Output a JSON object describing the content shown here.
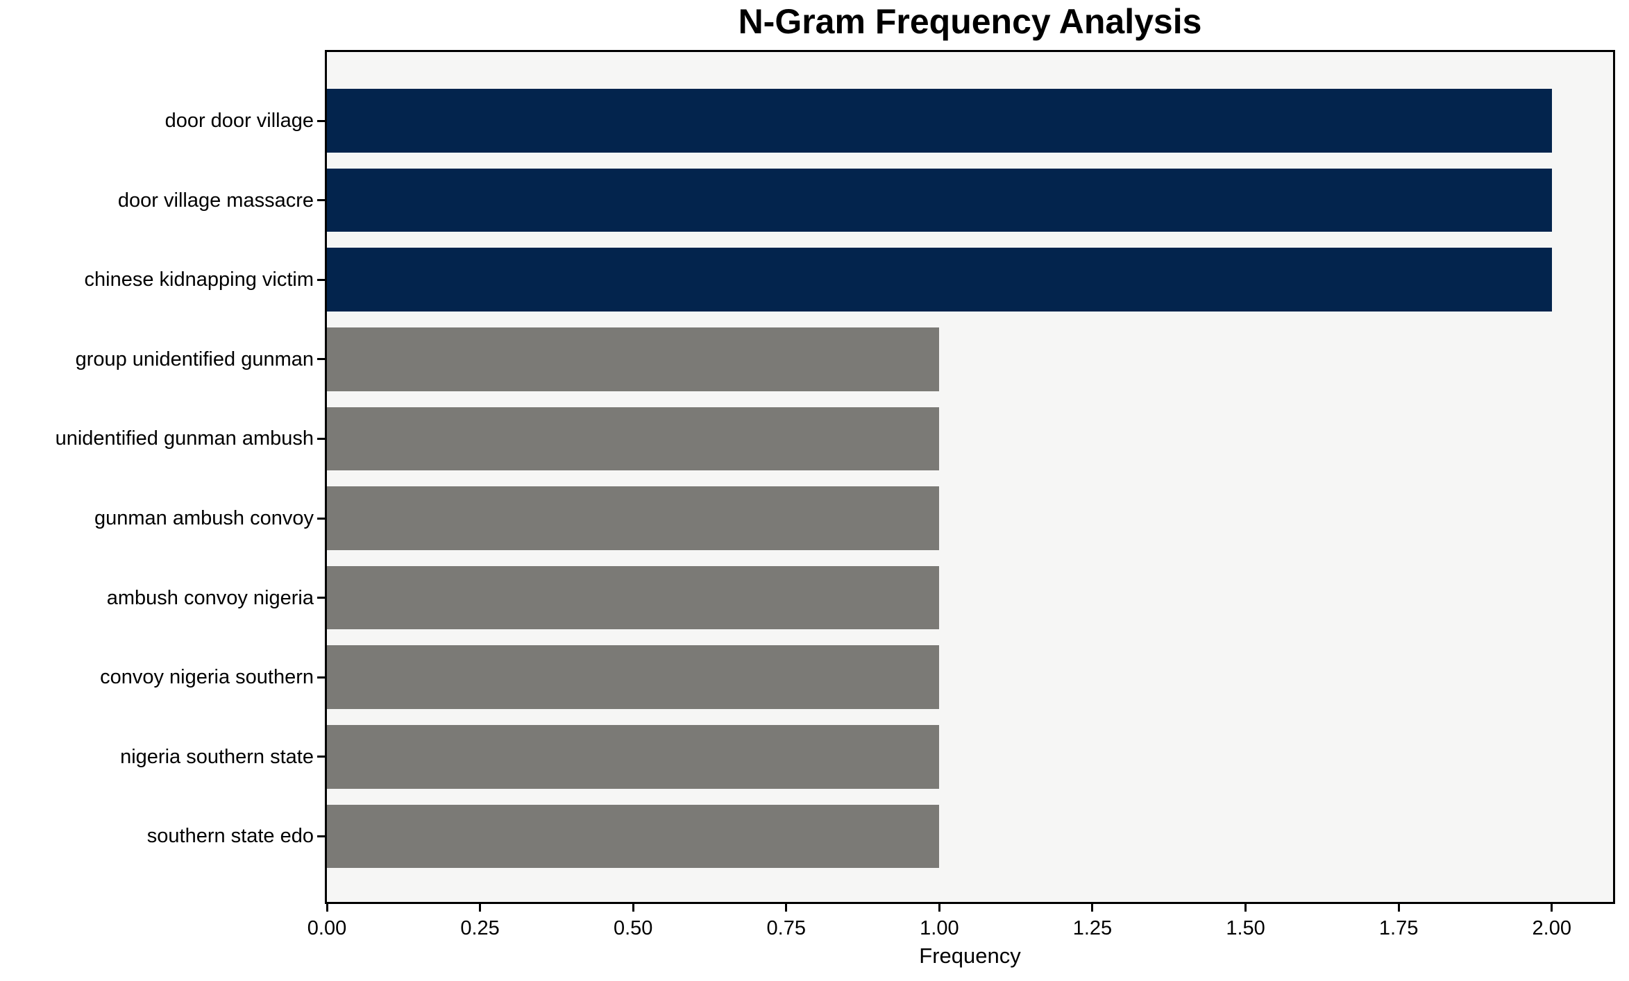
{
  "chart_data": {
    "type": "bar",
    "orientation": "horizontal",
    "title": "N-Gram Frequency Analysis",
    "xlabel": "Frequency",
    "ylabel": "",
    "categories": [
      "door door village",
      "door village massacre",
      "chinese kidnapping victim",
      "group unidentified gunman",
      "unidentified gunman ambush",
      "gunman ambush convoy",
      "ambush convoy nigeria",
      "convoy nigeria southern",
      "nigeria southern state",
      "southern state edo"
    ],
    "values": [
      2,
      2,
      2,
      1,
      1,
      1,
      1,
      1,
      1,
      1
    ],
    "bar_colors": [
      "#03244d",
      "#03244d",
      "#03244d",
      "#7b7a76",
      "#7b7a76",
      "#7b7a76",
      "#7b7a76",
      "#7b7a76",
      "#7b7a76",
      "#7b7a76"
    ],
    "xlim": [
      0,
      2.1
    ],
    "xticks": [
      "0.00",
      "0.25",
      "0.50",
      "0.75",
      "1.00",
      "1.25",
      "1.50",
      "1.75",
      "2.00"
    ],
    "grid": false,
    "legend_position": "none",
    "colors": {
      "highlight_bar": "#03244d",
      "default_bar": "#7b7a76",
      "plot_background": "#f6f6f5",
      "figure_background": "#ffffff",
      "axis": "#000000",
      "text": "#000000"
    }
  }
}
